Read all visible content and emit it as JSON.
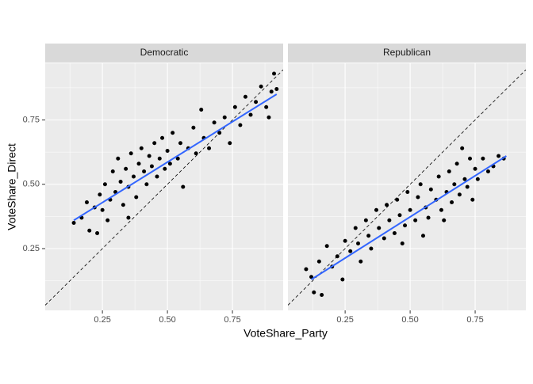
{
  "chart_data": {
    "type": "scatter",
    "xlabel": "VoteShare_Party",
    "ylabel": "VoteShare_Direct",
    "xlim": [
      0.03,
      0.945
    ],
    "ylim": [
      0.01,
      0.97
    ],
    "xticks": [
      0.25,
      {
        "value": 0.5,
        "label": "0.50"
      },
      0.75
    ],
    "yticks": [
      0.25,
      {
        "value": 0.5,
        "label": "0.50"
      },
      0.75
    ],
    "minor_grid": [
      0.125,
      0.375,
      0.625,
      0.875
    ],
    "grid": true,
    "point_color": "#000000",
    "trend_color": "#3366ff",
    "reference_line": {
      "slope": 1,
      "intercept": 0
    },
    "facets": [
      {
        "name": "Democratic",
        "x": [
          0.14,
          0.17,
          0.19,
          0.2,
          0.22,
          0.23,
          0.24,
          0.25,
          0.26,
          0.27,
          0.28,
          0.29,
          0.3,
          0.31,
          0.32,
          0.33,
          0.34,
          0.35,
          0.36,
          0.37,
          0.38,
          0.39,
          0.4,
          0.41,
          0.42,
          0.43,
          0.44,
          0.45,
          0.46,
          0.47,
          0.48,
          0.49,
          0.5,
          0.51,
          0.52,
          0.54,
          0.55,
          0.56,
          0.58,
          0.6,
          0.61,
          0.63,
          0.64,
          0.66,
          0.68,
          0.7,
          0.72,
          0.74,
          0.76,
          0.78,
          0.8,
          0.82,
          0.84,
          0.86,
          0.88,
          0.9,
          0.91,
          0.92,
          0.89,
          0.35
        ],
        "y": [
          0.35,
          0.37,
          0.43,
          0.32,
          0.41,
          0.31,
          0.46,
          0.4,
          0.5,
          0.36,
          0.44,
          0.55,
          0.47,
          0.6,
          0.51,
          0.42,
          0.56,
          0.49,
          0.62,
          0.53,
          0.45,
          0.58,
          0.64,
          0.55,
          0.5,
          0.61,
          0.57,
          0.66,
          0.53,
          0.6,
          0.68,
          0.56,
          0.63,
          0.58,
          0.7,
          0.6,
          0.66,
          0.49,
          0.64,
          0.72,
          0.62,
          0.79,
          0.68,
          0.64,
          0.74,
          0.7,
          0.76,
          0.66,
          0.8,
          0.73,
          0.84,
          0.77,
          0.82,
          0.88,
          0.8,
          0.86,
          0.93,
          0.87,
          0.76,
          0.37
        ],
        "trend": {
          "x": [
            0.14,
            0.92
          ],
          "y": [
            0.36,
            0.85
          ]
        }
      },
      {
        "name": "Republican",
        "x": [
          0.1,
          0.12,
          0.13,
          0.15,
          0.16,
          0.18,
          0.2,
          0.22,
          0.24,
          0.25,
          0.27,
          0.29,
          0.3,
          0.31,
          0.33,
          0.34,
          0.35,
          0.37,
          0.38,
          0.4,
          0.41,
          0.42,
          0.44,
          0.45,
          0.46,
          0.48,
          0.49,
          0.5,
          0.52,
          0.53,
          0.54,
          0.56,
          0.57,
          0.58,
          0.6,
          0.61,
          0.62,
          0.64,
          0.65,
          0.66,
          0.67,
          0.68,
          0.69,
          0.7,
          0.71,
          0.72,
          0.73,
          0.74,
          0.75,
          0.76,
          0.78,
          0.8,
          0.82,
          0.84,
          0.86,
          0.63,
          0.55,
          0.47
        ],
        "y": [
          0.17,
          0.14,
          0.08,
          0.2,
          0.07,
          0.26,
          0.18,
          0.22,
          0.13,
          0.28,
          0.24,
          0.33,
          0.27,
          0.2,
          0.36,
          0.3,
          0.25,
          0.4,
          0.33,
          0.29,
          0.42,
          0.36,
          0.31,
          0.44,
          0.38,
          0.34,
          0.47,
          0.4,
          0.36,
          0.45,
          0.5,
          0.41,
          0.37,
          0.48,
          0.44,
          0.53,
          0.4,
          0.47,
          0.55,
          0.43,
          0.5,
          0.58,
          0.46,
          0.64,
          0.52,
          0.49,
          0.6,
          0.44,
          0.56,
          0.52,
          0.6,
          0.55,
          0.57,
          0.61,
          0.6,
          0.36,
          0.3,
          0.27
        ],
        "trend": {
          "x": [
            0.12,
            0.87
          ],
          "y": [
            0.13,
            0.61
          ]
        }
      }
    ]
  }
}
